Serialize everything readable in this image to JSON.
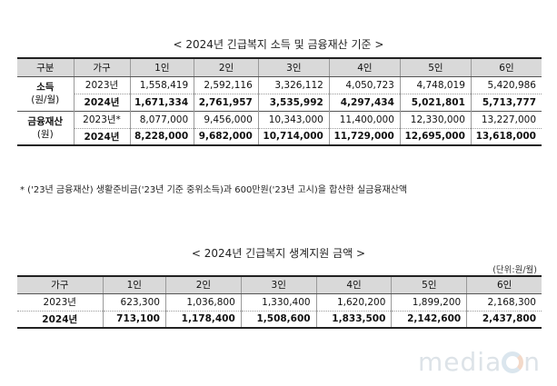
{
  "title1": "< 2024년 긴급복지 소득 및 금융재산 기준 >",
  "table1": {
    "headers": [
      "구분",
      "가구",
      "1인",
      "2인",
      "3인",
      "4인",
      "5인",
      "6인"
    ],
    "income": {
      "label1": "소득",
      "label2": "(원/월)",
      "rows": [
        {
          "year": "2023년",
          "values": [
            "1,558,419",
            "2,592,116",
            "3,326,112",
            "4,050,723",
            "4,748,019",
            "5,420,986"
          ]
        },
        {
          "year": "2024년",
          "values": [
            "1,671,334",
            "2,761,957",
            "3,535,992",
            "4,297,434",
            "5,021,801",
            "5,713,777"
          ]
        }
      ]
    },
    "assets": {
      "label1": "금융재산",
      "label2": "(원)",
      "rows": [
        {
          "year": "2023년*",
          "values": [
            "8,077,000",
            "9,456,000",
            "10,343,000",
            "11,400,000",
            "12,330,000",
            "13,227,000"
          ]
        },
        {
          "year": "2024년",
          "values": [
            "8,228,000",
            "9,682,000",
            "10,714,000",
            "11,729,000",
            "12,695,000",
            "13,618,000"
          ]
        }
      ]
    }
  },
  "note": "* ('23년 금융재산) 생활준비금('23년 기준 중위소득)과 600만원('23년 고시)을 합산한 실금융재산액",
  "title2": "< 2024년 긴급복지 생계지원 금액 >",
  "unit": "(단위:원/월)",
  "table2": {
    "headers": [
      "가구",
      "1인",
      "2인",
      "3인",
      "4인",
      "5인",
      "6인"
    ],
    "rows": [
      {
        "year": "2023년",
        "values": [
          "623,300",
          "1,036,800",
          "1,330,400",
          "1,620,200",
          "1,899,200",
          "2,168,300"
        ]
      },
      {
        "year": "2024년",
        "values": [
          "713,100",
          "1,178,400",
          "1,508,600",
          "1,833,500",
          "2,142,600",
          "2,437,800"
        ]
      }
    ]
  },
  "watermark": {
    "text1": "media",
    "text2": "n"
  }
}
